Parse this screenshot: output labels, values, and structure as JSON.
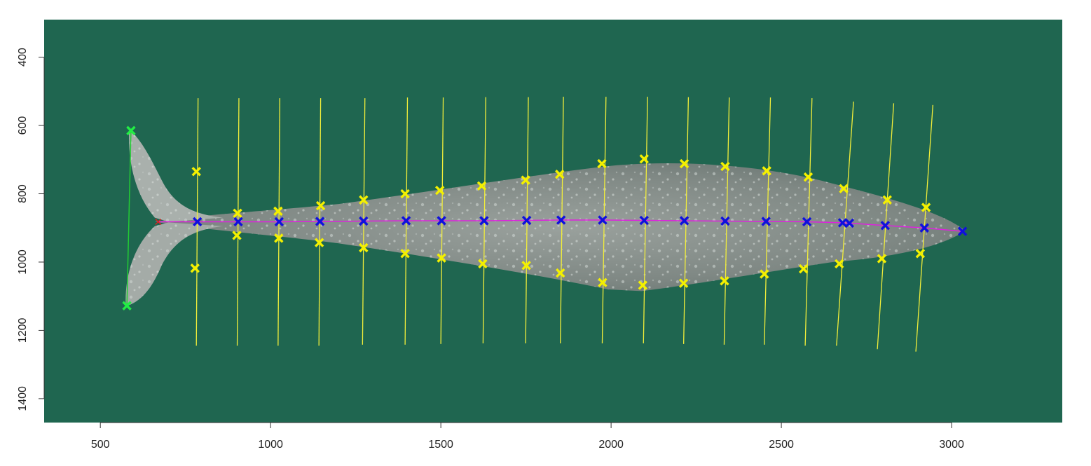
{
  "chart_data": {
    "type": "scatter",
    "title": "",
    "xlabel": "",
    "ylabel": "",
    "xlim": [
      335,
      3325
    ],
    "ylim": [
      1470,
      290
    ],
    "y_axis_inverted": true,
    "grid": false,
    "background_image": "aerial photo of a grey whale on green water",
    "x_ticks": [
      500,
      1000,
      1500,
      2000,
      2500,
      3000
    ],
    "y_ticks": [
      400,
      600,
      800,
      1000,
      1200,
      1400
    ],
    "colors": {
      "water": "#1f6650",
      "whale": "#8c9490",
      "width_lines": "#f2ee3a",
      "width_points": "#f4f000",
      "centerline_points": "#1010dd",
      "centerline_path": "#dd22dd",
      "fluke_points": "#22ee44",
      "fluke_line": "#22cc33",
      "start_marker": "#dd2222"
    },
    "fluke_tips": [
      [
        590,
        615
      ],
      [
        578,
        1128
      ]
    ],
    "centerline": [
      [
        670,
        882
      ],
      [
        785,
        882
      ],
      [
        905,
        882
      ],
      [
        1025,
        882
      ],
      [
        1145,
        881
      ],
      [
        1273,
        880
      ],
      [
        1398,
        879
      ],
      [
        1502,
        879
      ],
      [
        1627,
        879
      ],
      [
        1752,
        878
      ],
      [
        1853,
        877
      ],
      [
        1975,
        877
      ],
      [
        2097,
        878
      ],
      [
        2215,
        879
      ],
      [
        2335,
        880
      ],
      [
        2455,
        881
      ],
      [
        2575,
        882
      ],
      [
        2680,
        885
      ],
      [
        2700,
        886
      ],
      [
        2805,
        893
      ],
      [
        2920,
        900
      ],
      [
        3032,
        910
      ]
    ],
    "width_lines": [
      {
        "x_top": 787,
        "x_bot": 782,
        "y_top": 520,
        "y_bot": 1245
      },
      {
        "x_top": 907,
        "x_bot": 902,
        "y_top": 520,
        "y_bot": 1245
      },
      {
        "x_top": 1027,
        "x_bot": 1022,
        "y_top": 520,
        "y_bot": 1245
      },
      {
        "x_top": 1147,
        "x_bot": 1142,
        "y_top": 520,
        "y_bot": 1245
      },
      {
        "x_top": 1277,
        "x_bot": 1270,
        "y_top": 520,
        "y_bot": 1242
      },
      {
        "x_top": 1402,
        "x_bot": 1395,
        "y_top": 518,
        "y_bot": 1242
      },
      {
        "x_top": 1507,
        "x_bot": 1500,
        "y_top": 518,
        "y_bot": 1240
      },
      {
        "x_top": 1632,
        "x_bot": 1624,
        "y_top": 517,
        "y_bot": 1238
      },
      {
        "x_top": 1757,
        "x_bot": 1749,
        "y_top": 517,
        "y_bot": 1238
      },
      {
        "x_top": 1860,
        "x_bot": 1851,
        "y_top": 516,
        "y_bot": 1238
      },
      {
        "x_top": 1985,
        "x_bot": 1974,
        "y_top": 516,
        "y_bot": 1238
      },
      {
        "x_top": 2107,
        "x_bot": 2095,
        "y_top": 516,
        "y_bot": 1238
      },
      {
        "x_top": 2227,
        "x_bot": 2213,
        "y_top": 517,
        "y_bot": 1240
      },
      {
        "x_top": 2347,
        "x_bot": 2332,
        "y_top": 518,
        "y_bot": 1242
      },
      {
        "x_top": 2468,
        "x_bot": 2450,
        "y_top": 518,
        "y_bot": 1242
      },
      {
        "x_top": 2590,
        "x_bot": 2570,
        "y_top": 520,
        "y_bot": 1245
      },
      {
        "x_top": 2712,
        "x_bot": 2662,
        "y_top": 530,
        "y_bot": 1245
      },
      {
        "x_top": 2830,
        "x_bot": 2782,
        "y_top": 535,
        "y_bot": 1255
      },
      {
        "x_top": 2945,
        "x_bot": 2895,
        "y_top": 540,
        "y_bot": 1262
      }
    ],
    "width_points": [
      [
        782,
        735
      ],
      [
        778,
        1018
      ],
      [
        903,
        857
      ],
      [
        901,
        922
      ],
      [
        1022,
        851
      ],
      [
        1024,
        930
      ],
      [
        1147,
        835
      ],
      [
        1143,
        943
      ],
      [
        1273,
        818
      ],
      [
        1273,
        958
      ],
      [
        1395,
        800
      ],
      [
        1395,
        975
      ],
      [
        1497,
        790
      ],
      [
        1502,
        988
      ],
      [
        1620,
        777
      ],
      [
        1623,
        1005
      ],
      [
        1749,
        760
      ],
      [
        1751,
        1010
      ],
      [
        1849,
        743
      ],
      [
        1851,
        1032
      ],
      [
        1973,
        712
      ],
      [
        1975,
        1060
      ],
      [
        2097,
        698
      ],
      [
        2093,
        1068
      ],
      [
        2215,
        712
      ],
      [
        2213,
        1062
      ],
      [
        2335,
        720
      ],
      [
        2333,
        1055
      ],
      [
        2457,
        733
      ],
      [
        2450,
        1035
      ],
      [
        2579,
        751
      ],
      [
        2565,
        1020
      ],
      [
        2683,
        785
      ],
      [
        2670,
        1005
      ],
      [
        2811,
        818
      ],
      [
        2795,
        990
      ],
      [
        2925,
        840
      ],
      [
        2908,
        975
      ]
    ]
  }
}
